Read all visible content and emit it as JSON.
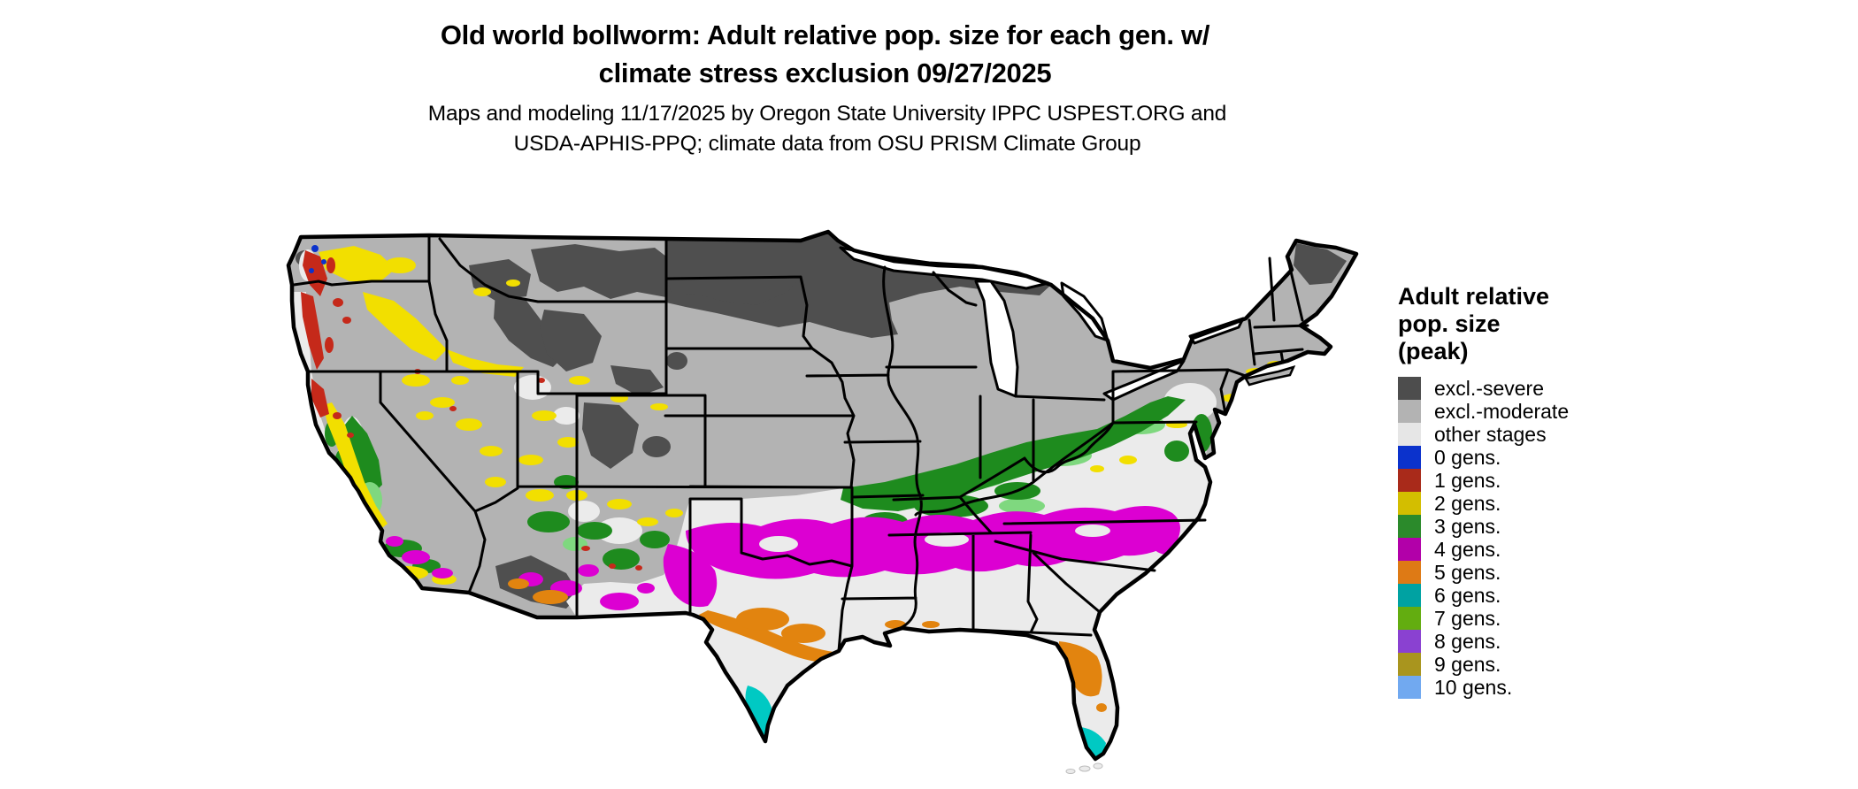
{
  "title": {
    "line1": "Old world bollworm: Adult relative pop. size for each gen. w/",
    "line2": "climate stress exclusion 09/27/2025"
  },
  "subtitle": {
    "line1": "Maps and modeling 11/17/2025 by Oregon State University IPPC USPEST.ORG and",
    "line2": "USDA-APHIS-PPQ; climate data from OSU PRISM Climate Group"
  },
  "legend": {
    "title_lines": [
      "Adult relative",
      "pop. size",
      "(peak)"
    ],
    "items": [
      {
        "label": "excl.-severe",
        "color": "#4d4d4d"
      },
      {
        "label": "excl.-moderate",
        "color": "#b3b3b3"
      },
      {
        "label": "other stages",
        "color": "#e6e6e6"
      },
      {
        "label": "0 gens.",
        "color": "#0b32cc"
      },
      {
        "label": "1 gens.",
        "color": "#a92a1a"
      },
      {
        "label": "2 gens.",
        "color": "#d3be00"
      },
      {
        "label": "3 gens.",
        "color": "#2b8a2b"
      },
      {
        "label": "4 gens.",
        "color": "#b200a9"
      },
      {
        "label": "5 gens.",
        "color": "#de7a15"
      },
      {
        "label": "6 gens.",
        "color": "#00a2a2"
      },
      {
        "label": "7 gens.",
        "color": "#63ad10"
      },
      {
        "label": "8 gens.",
        "color": "#8a41d1"
      },
      {
        "label": "9 gens.",
        "color": "#a9951e"
      },
      {
        "label": "10 gens.",
        "color": "#71a9f0"
      }
    ]
  },
  "map_colors": {
    "moderate": "#b3b3b3",
    "severe": "#4f4f4f",
    "other": "#ebebeb",
    "g0m": "#0b32cc",
    "g1m": "#c5291a",
    "g2m": "#f2df00",
    "g3m": "#1e8b1e",
    "g3l": "#7fd87f",
    "g4m": "#dc00d2",
    "g5m": "#e2840f",
    "g6m": "#00c9c3",
    "border": "#000000",
    "water": "#ffffff"
  }
}
